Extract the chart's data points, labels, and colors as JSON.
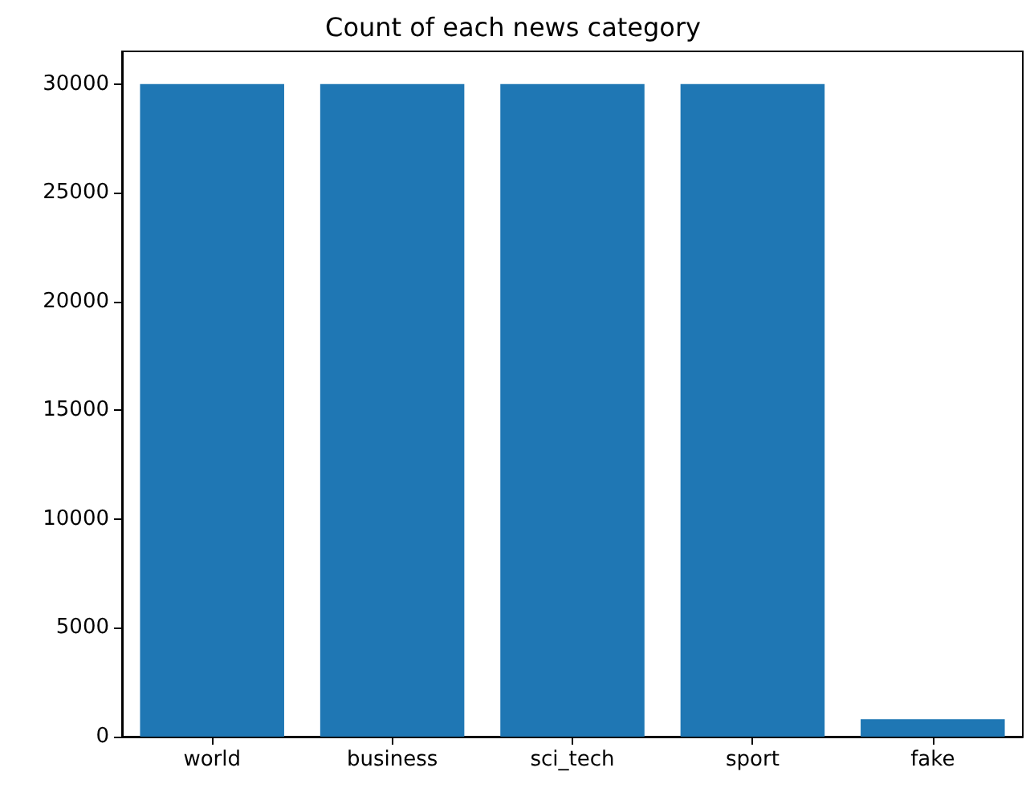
{
  "chart_data": {
    "type": "bar",
    "title": "Count of each news category",
    "categories": [
      "world",
      "business",
      "sci_tech",
      "sport",
      "fake"
    ],
    "values": [
      30000,
      30000,
      30000,
      30000,
      800
    ],
    "color": "#1f77b4",
    "ylim": [
      0,
      31500
    ],
    "yticks": [
      0,
      5000,
      10000,
      15000,
      20000,
      25000,
      30000
    ],
    "grid": false
  }
}
